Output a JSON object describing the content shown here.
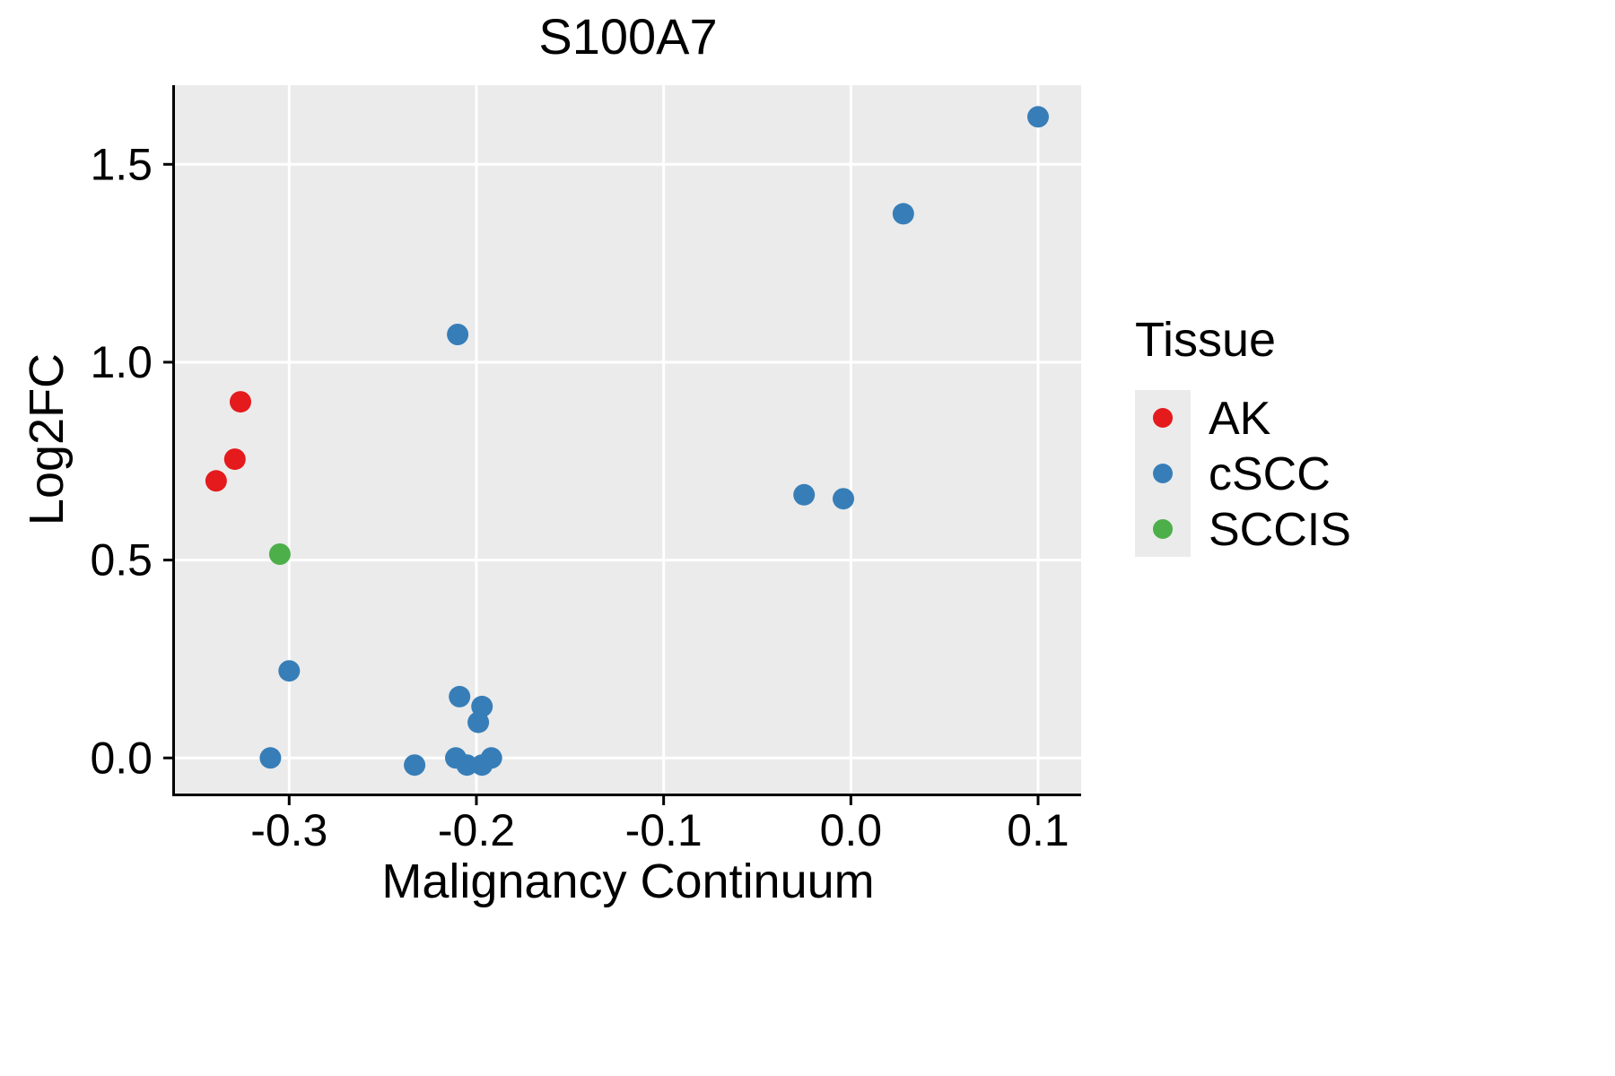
{
  "page": {
    "background": "#ffffff"
  },
  "chart_data": {
    "type": "scatter",
    "title": "S100A7",
    "xlabel": "Malignancy Continuum",
    "ylabel": "Log2FC",
    "xlim": [
      -0.361,
      0.123
    ],
    "ylim": [
      -0.09,
      1.7
    ],
    "x_ticks": [
      -0.3,
      -0.2,
      -0.1,
      0.0,
      0.1
    ],
    "x_tick_labels": [
      "-0.3",
      "-0.2",
      "-0.1",
      "0.0",
      "0.1"
    ],
    "y_ticks": [
      0.0,
      0.5,
      1.0,
      1.5
    ],
    "y_tick_labels": [
      "0.0",
      "0.5",
      "1.0",
      "1.5"
    ],
    "grid": "major-only",
    "panel_color": "#EBEBEB",
    "grid_color": "#FFFFFF",
    "axis_color": "#000000",
    "point_radius": 12,
    "legend": {
      "title": "Tissue",
      "position": "right",
      "key_color": "#EBEBEB"
    },
    "series": [
      {
        "name": "AK",
        "color": "#E41A1C",
        "points": [
          [
            -0.326,
            0.9
          ],
          [
            -0.329,
            0.755
          ],
          [
            -0.339,
            0.7
          ]
        ]
      },
      {
        "name": "cSCC",
        "color": "#377EB8",
        "points": [
          [
            0.1,
            1.62
          ],
          [
            0.028,
            1.375
          ],
          [
            -0.21,
            1.07
          ],
          [
            -0.025,
            0.665
          ],
          [
            -0.004,
            0.655
          ],
          [
            -0.3,
            0.22
          ],
          [
            -0.209,
            0.155
          ],
          [
            -0.197,
            0.13
          ],
          [
            -0.199,
            0.09
          ],
          [
            -0.31,
            0.0
          ],
          [
            -0.233,
            -0.018
          ],
          [
            -0.211,
            0.0
          ],
          [
            -0.205,
            -0.018
          ],
          [
            -0.197,
            -0.018
          ],
          [
            -0.192,
            0.0
          ]
        ]
      },
      {
        "name": "SCCIS",
        "color": "#4DAF4A",
        "points": [
          [
            -0.305,
            0.515
          ]
        ]
      }
    ]
  }
}
